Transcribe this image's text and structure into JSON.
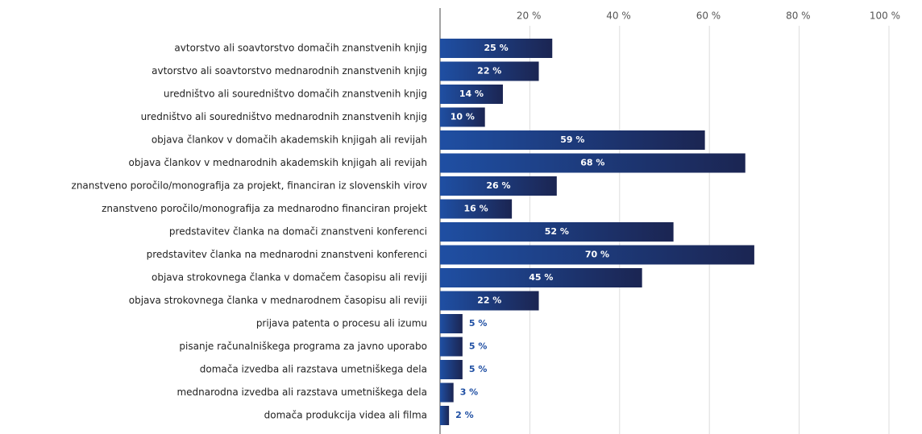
{
  "chart_data": {
    "type": "barh",
    "categories": [
      "avtorstvo ali soavtorstvo domačih znanstvenih knjig",
      "avtorstvo ali soavtorstvo mednarodnih znanstvenih knjig",
      "uredništvo ali souredništvo domačih znanstvenih knjig",
      "uredništvo ali souredništvo mednarodnih znanstvenih knjig",
      "objava člankov v domačih akademskih knjigah ali revijah",
      "objava člankov v mednarodnih akademskih knjigah ali revijah",
      "znanstveno poročilo/monografija za projekt, financiran iz slovenskih virov",
      "znanstveno poročilo/monografija za mednarodno financiran projekt",
      "predstavitev članka na domači znanstveni konferenci",
      "predstavitev članka na mednarodni znanstveni konferenci",
      "objava strokovnega članka v domačem časopisu ali reviji",
      "objava strokovnega članka v mednarodnem časopisu ali reviji",
      "prijava patenta o procesu ali izumu",
      "pisanje računalniškega programa za javno uporabo",
      "domača izvedba ali razstava umetniškega dela",
      "mednarodna izvedba ali razstava umetniškega dela",
      "domača produkcija videa ali filma"
    ],
    "values": [
      25,
      22,
      14,
      10,
      59,
      68,
      26,
      16,
      52,
      70,
      45,
      22,
      5,
      5,
      5,
      3,
      2
    ],
    "value_labels": [
      "25 %",
      "22 %",
      "14 %",
      "10 %",
      "59 %",
      "68 %",
      "26 %",
      "16 %",
      "52 %",
      "70 %",
      "45 %",
      "22 %",
      "5 %",
      "5 %",
      "5 %",
      "3 %",
      "2 %"
    ],
    "colors": [
      "#1f4fa3",
      "#1b2552"
    ],
    "xlim": [
      0,
      100
    ],
    "xticks": [
      {
        "value": 20,
        "label": "20 %"
      },
      {
        "value": 40,
        "label": "40 %"
      },
      {
        "value": 60,
        "label": "60 %"
      },
      {
        "value": 80,
        "label": "80 %"
      },
      {
        "value": 100,
        "label": "100 %"
      }
    ],
    "grid": true
  }
}
